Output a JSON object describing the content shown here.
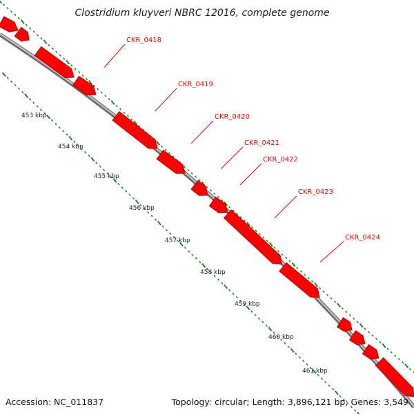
{
  "title": "Clostridium kluyveri NBRC 12016, complete genome",
  "footer": {
    "accession": "Accession: NC_011837",
    "summary": "Topology: circular; Length: 3,896,121 bp; Genes: 3,549"
  },
  "colors": {
    "gene_fill": "#ff0000",
    "gene_dark": "#b50000",
    "backbone": "#9a9a9a",
    "tick": "#1a8a1a",
    "label": "#e00000"
  },
  "kbp_labels": [
    "453 kbp",
    "454 kbp",
    "455 kbp",
    "456 kbp",
    "457 kbp",
    "458 kbp",
    "459 kbp",
    "460 kbp",
    "461 kbp"
  ],
  "genes": [
    {
      "label": "CKR_0418"
    },
    {
      "label": "CKR_0419"
    },
    {
      "label": "CKR_0420"
    },
    {
      "label": "CKR_0421"
    },
    {
      "label": "CKR_0422"
    },
    {
      "label": "CKR_0423"
    },
    {
      "label": "CKR_0424"
    }
  ]
}
